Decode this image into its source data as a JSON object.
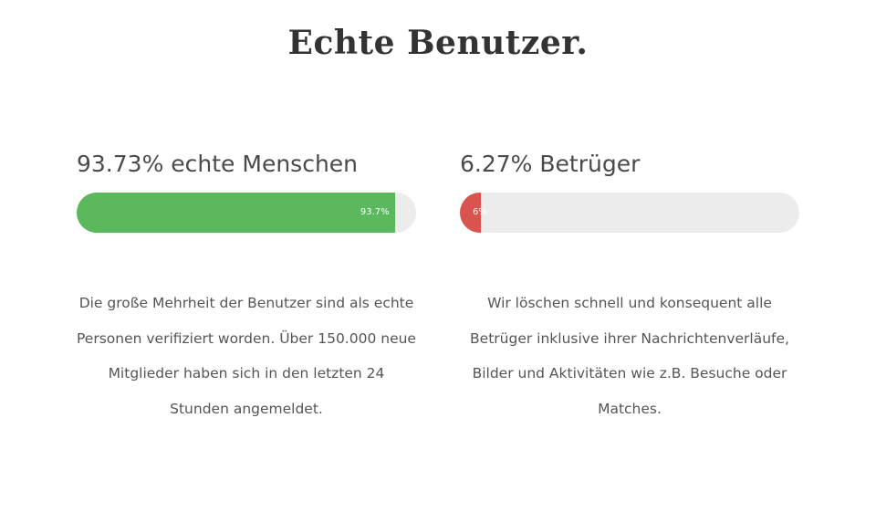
{
  "page": {
    "title": "Echte Benutzer."
  },
  "stats": [
    {
      "heading": "93.73% echte Menschen",
      "bar_label": "93.7%",
      "percent": 93.73,
      "color": "#5cb85c",
      "description": "Die große Mehrheit der Benutzer sind als echte Personen verifiziert worden. Über 150.000 neue Mitglieder haben sich in den letzten 24 Stunden angemeldet."
    },
    {
      "heading": "6.27% Betrüger",
      "bar_label": "6%",
      "percent": 6.27,
      "color": "#d9534f",
      "description": "Wir löschen schnell und konsequent alle Betrüger inklusive ihrer Nachrichtenverläufe, Bilder und Aktivitäten wie z.B. Besuche oder Matches."
    }
  ],
  "colors": {
    "track": "#ececec",
    "text": "#444444"
  }
}
